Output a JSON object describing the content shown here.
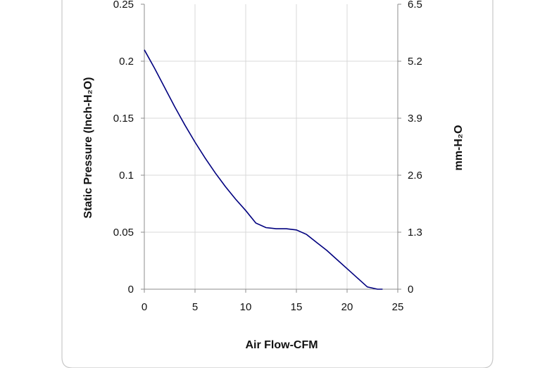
{
  "chart_data": {
    "type": "line",
    "xlabel": "Air Flow-CFM",
    "ylabel": "Static Pressure (Inch-H₂O)",
    "ylabel_right": "mm-H₂O",
    "xlim": [
      0,
      25
    ],
    "ylim": [
      0,
      0.25
    ],
    "ylim_right": [
      0,
      6.5
    ],
    "x_ticks": [
      "0",
      "5",
      "10",
      "15",
      "20",
      "25"
    ],
    "y_ticks": [
      "0",
      "0.05",
      "0.1",
      "0.15",
      "0.2",
      "0.25"
    ],
    "y_right_ticks": [
      "0",
      "1.3",
      "2.6",
      "3.9",
      "5.2",
      "6.5"
    ],
    "grid": true,
    "colors": {
      "line": "#00007f",
      "grid": "#d9d9d9",
      "axis": "#8c8c8c",
      "frame": "#c8c8c8"
    },
    "series": [
      {
        "x": [
          0,
          1,
          2,
          3,
          4,
          5,
          6,
          7,
          8,
          9,
          10,
          11,
          12,
          13,
          14,
          15,
          16,
          17,
          18,
          19,
          20,
          21,
          22,
          23,
          23.5
        ],
        "values": [
          0.21,
          0.194,
          0.177,
          0.16,
          0.144,
          0.129,
          0.115,
          0.102,
          0.09,
          0.079,
          0.069,
          0.058,
          0.054,
          0.053,
          0.053,
          0.052,
          0.048,
          0.041,
          0.034,
          0.026,
          0.018,
          0.01,
          0.002,
          -0.006,
          0.0
        ]
      }
    ]
  }
}
